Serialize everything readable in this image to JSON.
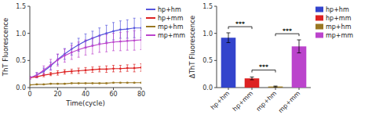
{
  "chart_data": [
    {
      "type": "line",
      "x": [
        0,
        5,
        10,
        15,
        20,
        25,
        30,
        35,
        40,
        45,
        50,
        55,
        60,
        65,
        70,
        75,
        80
      ],
      "series": [
        {
          "name": "hp+hm",
          "color": "#5555dd",
          "values": [
            0.18,
            0.23,
            0.3,
            0.4,
            0.52,
            0.62,
            0.71,
            0.79,
            0.86,
            0.91,
            0.96,
            1.0,
            1.04,
            1.07,
            1.08,
            1.1,
            1.1
          ],
          "errors": [
            0.02,
            0.04,
            0.06,
            0.07,
            0.09,
            0.1,
            0.11,
            0.12,
            0.13,
            0.13,
            0.14,
            0.15,
            0.16,
            0.16,
            0.17,
            0.18,
            0.18
          ]
        },
        {
          "name": "hp+mm",
          "color": "#dd2222",
          "values": [
            0.18,
            0.2,
            0.23,
            0.25,
            0.27,
            0.29,
            0.3,
            0.31,
            0.32,
            0.33,
            0.34,
            0.34,
            0.35,
            0.35,
            0.36,
            0.36,
            0.37
          ],
          "errors": [
            0.02,
            0.02,
            0.03,
            0.03,
            0.04,
            0.04,
            0.04,
            0.05,
            0.05,
            0.05,
            0.05,
            0.06,
            0.06,
            0.06,
            0.06,
            0.07,
            0.07
          ]
        },
        {
          "name": "mp+hm",
          "color": "#997722",
          "values": [
            0.05,
            0.06,
            0.06,
            0.07,
            0.07,
            0.07,
            0.08,
            0.08,
            0.08,
            0.08,
            0.08,
            0.08,
            0.09,
            0.09,
            0.09,
            0.09,
            0.09
          ],
          "errors": [
            0.005,
            0.005,
            0.005,
            0.005,
            0.005,
            0.005,
            0.005,
            0.005,
            0.005,
            0.005,
            0.005,
            0.005,
            0.005,
            0.005,
            0.005,
            0.005,
            0.005
          ]
        },
        {
          "name": "mp+mm",
          "color": "#bb44cc",
          "values": [
            0.18,
            0.23,
            0.32,
            0.42,
            0.51,
            0.59,
            0.65,
            0.7,
            0.74,
            0.77,
            0.8,
            0.82,
            0.84,
            0.85,
            0.86,
            0.87,
            0.88
          ],
          "errors": [
            0.03,
            0.05,
            0.08,
            0.1,
            0.11,
            0.12,
            0.13,
            0.14,
            0.14,
            0.15,
            0.15,
            0.16,
            0.16,
            0.17,
            0.17,
            0.18,
            0.18
          ]
        }
      ],
      "xlabel": "Time(cycle)",
      "ylabel": "ThT Fluorescence",
      "xlim": [
        0,
        80
      ],
      "ylim": [
        0,
        1.5
      ],
      "xticks": [
        0,
        20,
        40,
        60,
        80
      ],
      "yticks": [
        {
          "value": 0,
          "label": "0.0"
        },
        0.5,
        {
          "value": 1,
          "label": "1.0"
        },
        1.5
      ],
      "marker": "circle",
      "legend": "right",
      "grid": false
    },
    {
      "type": "bar",
      "categories": [
        "hp+hm",
        "hp+mm",
        "mp+hm",
        "mp+mm"
      ],
      "values": [
        0.92,
        0.17,
        0.02,
        0.76
      ],
      "errors": [
        0.09,
        0.025,
        0.008,
        0.12
      ],
      "colors": [
        "#3344cc",
        "#dd2222",
        "#997722",
        "#bb44cc"
      ],
      "ylabel": "ΔThT Fluorescence",
      "ylim": [
        0,
        1.5
      ],
      "yticks": [
        {
          "value": 0,
          "label": "0.0"
        },
        0.5,
        {
          "value": 1,
          "label": "1.0"
        },
        1.5
      ],
      "annotations": [
        {
          "from": "hp+hm",
          "to": "hp+mm",
          "y": 1.08,
          "label": "***"
        },
        {
          "from": "hp+mm",
          "to": "mp+hm",
          "y": 0.28,
          "label": "***"
        },
        {
          "from": "mp+hm",
          "to": "mp+mm",
          "y": 0.95,
          "label": "***"
        }
      ],
      "legend": "right",
      "grid": false
    }
  ]
}
